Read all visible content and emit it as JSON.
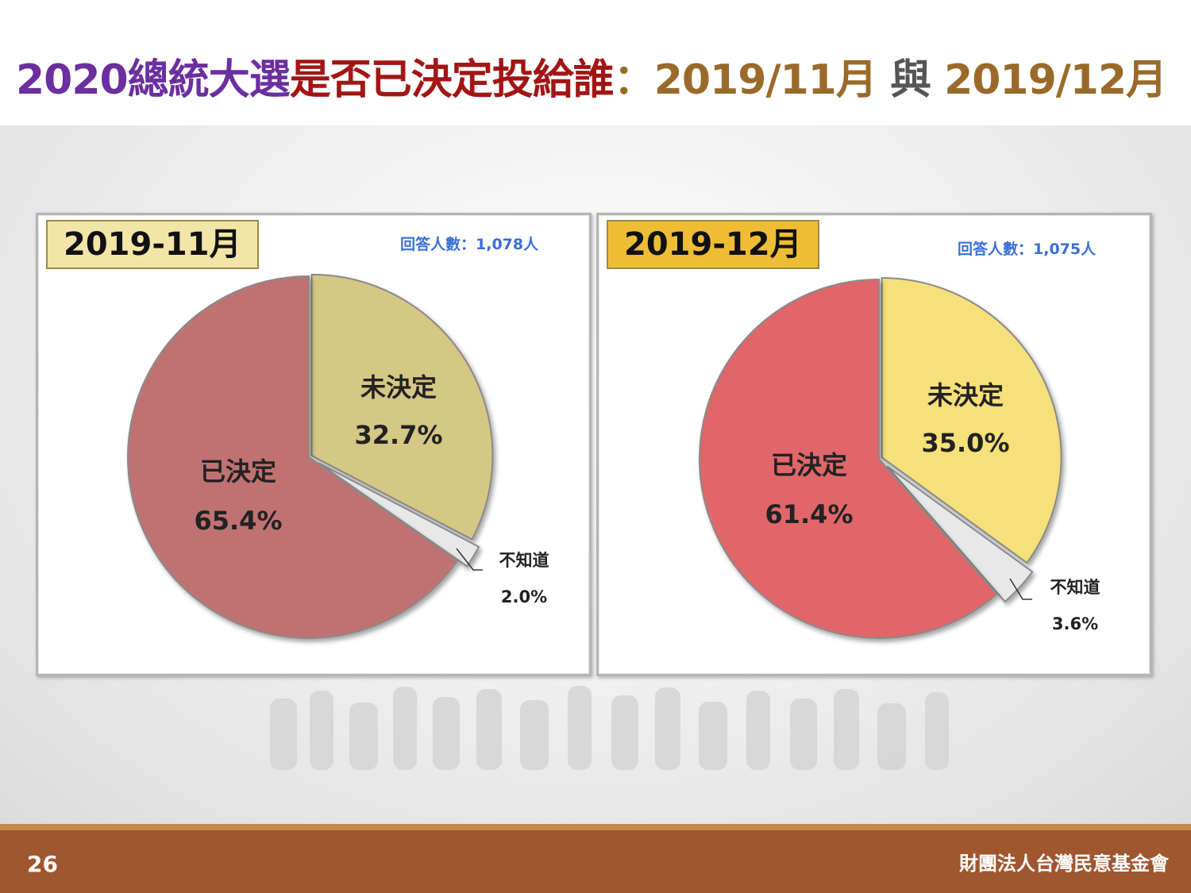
{
  "title": {
    "part1": "2020總統大選",
    "part2": "是否已決定投給誰",
    "part3": "：2019/11月",
    "part4": " 與 ",
    "part5": "2019/12月"
  },
  "footer": {
    "page_number": "26",
    "organization": "財團法人台灣民意基金會"
  },
  "colors": {
    "title_purple": "#6b2fa0",
    "title_red": "#a31515",
    "title_gold": "#9a6a2a",
    "footer_brown": "#a0562f",
    "respondents_blue": "#3a6fd8"
  },
  "chart_data": [
    {
      "type": "pie",
      "title": "2019-11月",
      "respondents": "回答人數：1,078人",
      "slices": [
        {
          "label": "未決定",
          "value": 32.7,
          "value_label": "32.7%",
          "color": "#d5c784"
        },
        {
          "label": "不知道",
          "value": 2.0,
          "value_label": "2.0%",
          "color": "#e8e8e8"
        },
        {
          "label": "已決定",
          "value": 65.4,
          "value_label": "65.4%",
          "color": "#c07272"
        }
      ],
      "badge_color": "#f3e5a8"
    },
    {
      "type": "pie",
      "title": "2019-12月",
      "respondents": "回答人數：1,075人",
      "slices": [
        {
          "label": "未決定",
          "value": 35.0,
          "value_label": "35.0%",
          "color": "#f5e07a"
        },
        {
          "label": "不知道",
          "value": 3.6,
          "value_label": "3.6%",
          "color": "#e8e8e8"
        },
        {
          "label": "已決定",
          "value": 61.4,
          "value_label": "61.4%",
          "color": "#e0666a"
        }
      ],
      "badge_color": "#efbd35"
    }
  ]
}
